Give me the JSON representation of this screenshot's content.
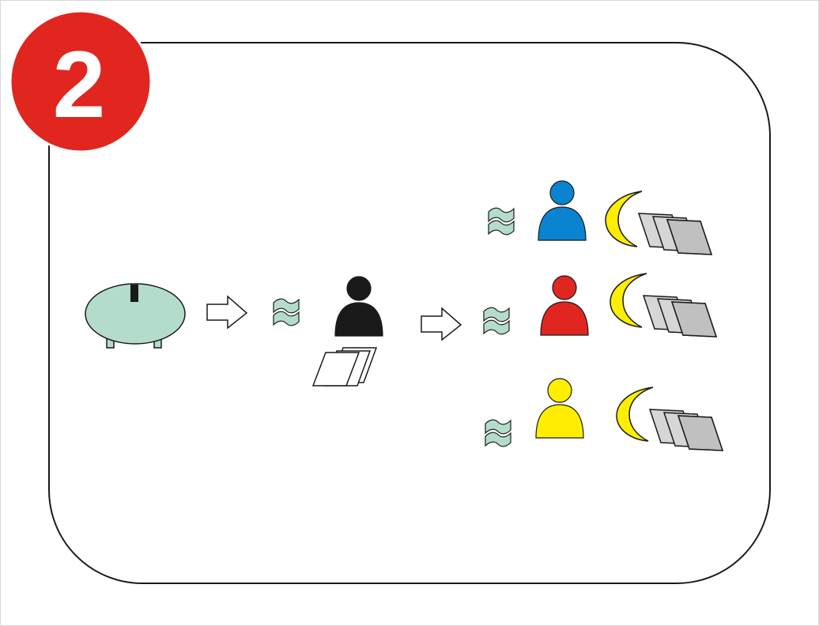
{
  "badge": {
    "number": "2",
    "color": "#e0261f"
  },
  "colors": {
    "outline": "#1a1a1a",
    "bill": "#b4dcca",
    "piggy": "#b4dcca",
    "person_main": "#1a1a1a",
    "person_blue": "#0a84d0",
    "person_red": "#e0261f",
    "person_yellow": "#ffee00",
    "moon": "#ffee00",
    "sheet_gray_light": "#d6d6d6",
    "sheet_gray_dark": "#c0c0c0"
  },
  "icons": {
    "piggy_bank": "piggy-bank-icon",
    "arrow": "right-arrow-icon",
    "money": "money-bill-icon",
    "person": "person-icon",
    "documents": "documents-icon",
    "moon": "crescent-moon-icon"
  },
  "recipients": [
    {
      "name": "blue",
      "color_key": "person_blue"
    },
    {
      "name": "red",
      "color_key": "person_red"
    },
    {
      "name": "yellow",
      "color_key": "person_yellow"
    }
  ]
}
